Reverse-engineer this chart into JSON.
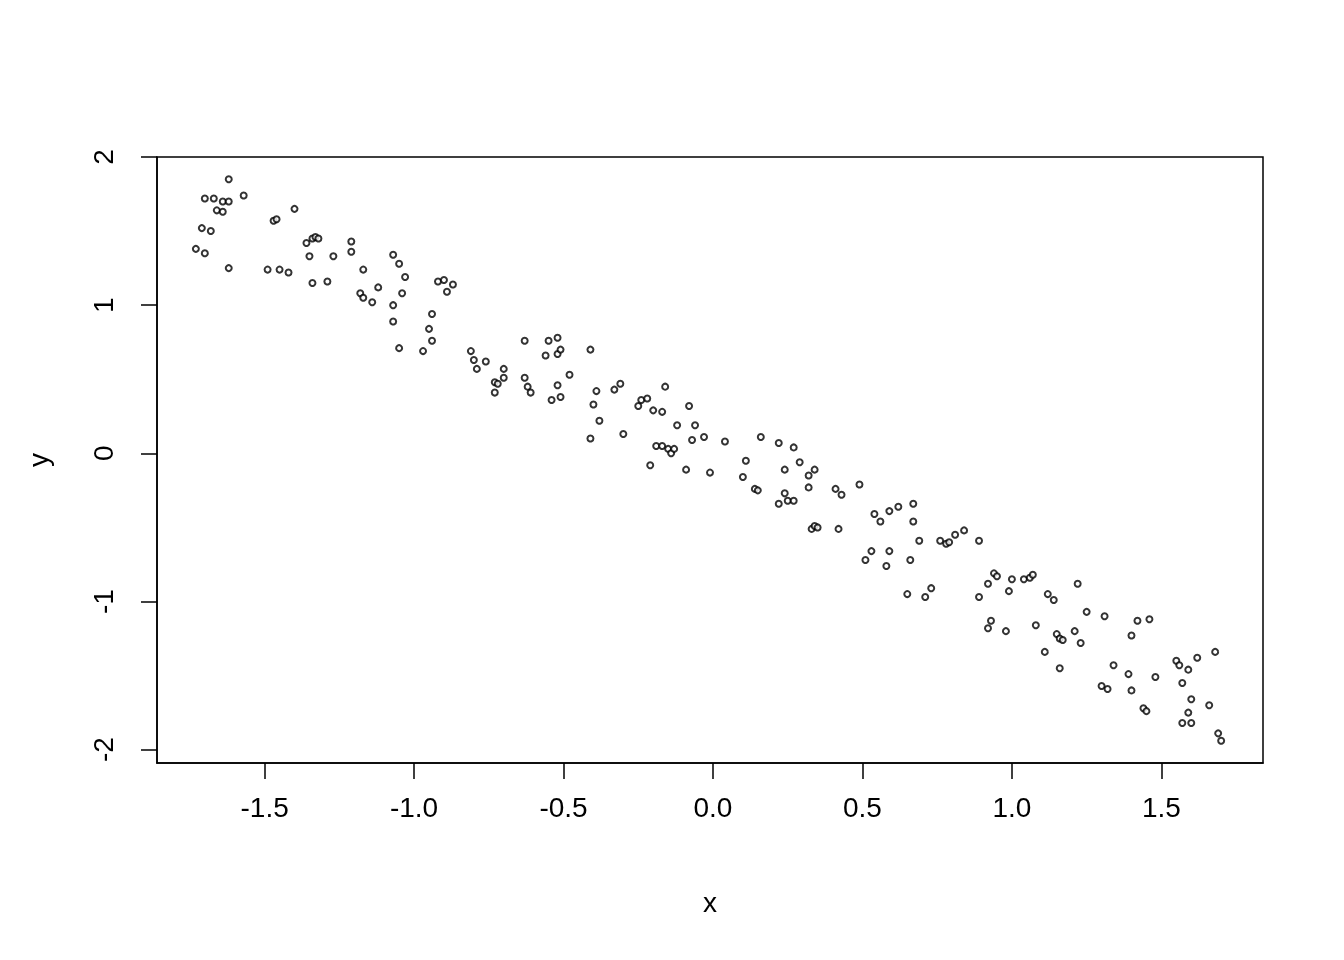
{
  "chart_data": {
    "type": "scatter",
    "xlabel": "x",
    "ylabel": "y",
    "marker": "circle",
    "grid": false,
    "color": "#000000",
    "xlim": [
      -1.86,
      1.84
    ],
    "ylim": [
      -2.09,
      2.0
    ],
    "xticks": [
      {
        "value": -1.5,
        "label": "-1.5"
      },
      {
        "value": -1.0,
        "label": "-1.0"
      },
      {
        "value": -0.5,
        "label": "-0.5"
      },
      {
        "value": 0,
        "label": "0.0"
      },
      {
        "value": 0.5,
        "label": "0.5"
      },
      {
        "value": 1.0,
        "label": "1.0"
      },
      {
        "value": 1.5,
        "label": "1.5"
      }
    ],
    "yticks": [
      -2,
      -1,
      0,
      1,
      2
    ],
    "x": [
      -1.73,
      -1.71,
      -1.7,
      -1.7,
      -1.68,
      -1.67,
      -1.66,
      -1.64,
      -1.64,
      -1.62,
      -1.62,
      -1.62,
      -1.57,
      -1.49,
      -1.47,
      -1.46,
      -1.45,
      -1.42,
      -1.4,
      -1.36,
      -1.35,
      -1.34,
      -1.34,
      -1.33,
      -1.32,
      -1.29,
      -1.27,
      -1.21,
      -1.21,
      -1.17,
      -1.18,
      -1.17,
      -1.14,
      -1.12,
      -1.07,
      -1.07,
      -1.07,
      -1.05,
      -1.05,
      -1.04,
      -1.03,
      -0.97,
      -0.95,
      -0.94,
      -0.94,
      -0.92,
      -0.9,
      -0.89,
      -0.87,
      -0.81,
      -0.8,
      -0.79,
      -0.76,
      -0.73,
      -0.73,
      -0.72,
      -0.7,
      -0.7,
      -0.63,
      -0.63,
      -0.62,
      -0.61,
      -0.56,
      -0.55,
      -0.54,
      -0.52,
      -0.52,
      -0.52,
      -0.51,
      -0.51,
      -0.48,
      -0.41,
      -0.41,
      -0.4,
      -0.39,
      -0.38,
      -0.33,
      -0.31,
      -0.3,
      -0.25,
      -0.24,
      -0.22,
      -0.21,
      -0.2,
      -0.19,
      -0.17,
      -0.17,
      -0.16,
      -0.15,
      -0.14,
      -0.13,
      -0.12,
      -0.09,
      -0.08,
      -0.07,
      -0.06,
      -0.03,
      -0.01,
      0.04,
      0.1,
      0.11,
      0.14,
      0.15,
      0.16,
      0.22,
      0.22,
      0.24,
      0.24,
      0.25,
      0.27,
      0.27,
      0.29,
      0.32,
      0.32,
      0.33,
      0.34,
      0.34,
      0.35,
      0.41,
      0.42,
      0.43,
      0.49,
      0.51,
      0.53,
      0.54,
      0.56,
      0.58,
      0.59,
      0.59,
      0.62,
      0.65,
      0.66,
      0.67,
      0.67,
      0.69,
      0.71,
      0.73,
      0.76,
      0.78,
      0.79,
      0.81,
      0.84,
      0.89,
      0.89,
      0.92,
      0.92,
      0.93,
      0.94,
      0.95,
      0.98,
      0.99,
      1.0,
      1.04,
      1.06,
      1.07,
      1.08,
      1.11,
      1.12,
      1.14,
      1.15,
      1.16,
      1.16,
      1.17,
      1.21,
      1.22,
      1.23,
      1.25,
      1.3,
      1.31,
      1.32,
      1.34,
      1.39,
      1.4,
      1.4,
      1.42,
      1.44,
      1.45,
      1.46,
      1.48,
      1.55,
      1.56,
      1.57,
      1.57,
      1.59,
      1.59,
      1.6,
      1.6,
      1.62,
      1.66,
      1.68,
      1.69,
      1.7
    ],
    "values": [
      1.38,
      1.52,
      1.35,
      1.72,
      1.5,
      1.72,
      1.64,
      1.63,
      1.7,
      1.85,
      1.7,
      1.25,
      1.74,
      1.24,
      1.57,
      1.58,
      1.24,
      1.22,
      1.65,
      1.42,
      1.33,
      1.15,
      1.45,
      1.46,
      1.45,
      1.16,
      1.33,
      1.43,
      1.36,
      1.24,
      1.08,
      1.05,
      1.02,
      1.12,
      1.34,
      0.89,
      1.0,
      1.28,
      0.71,
      1.08,
      1.19,
      0.69,
      0.84,
      0.94,
      0.76,
      1.16,
      1.17,
      1.09,
      1.14,
      0.69,
      0.63,
      0.57,
      0.62,
      0.48,
      0.41,
      0.47,
      0.51,
      0.57,
      0.76,
      0.51,
      0.45,
      0.41,
      0.66,
      0.76,
      0.36,
      0.46,
      0.78,
      0.67,
      0.38,
      0.7,
      0.53,
      0.7,
      0.1,
      0.33,
      0.42,
      0.22,
      0.43,
      0.47,
      0.13,
      0.32,
      0.36,
      0.37,
      -0.08,
      0.29,
      0.05,
      0.28,
      0.05,
      0.45,
      0.03,
      0.0,
      0.03,
      0.19,
      -0.11,
      0.32,
      0.09,
      0.19,
      0.11,
      -0.13,
      0.08,
      -0.16,
      -0.05,
      -0.24,
      -0.25,
      0.11,
      0.07,
      -0.34,
      -0.27,
      -0.11,
      -0.32,
      0.04,
      -0.32,
      -0.06,
      -0.23,
      -0.15,
      -0.51,
      -0.49,
      -0.11,
      -0.5,
      -0.24,
      -0.51,
      -0.28,
      -0.21,
      -0.72,
      -0.66,
      -0.41,
      -0.46,
      -0.76,
      -0.66,
      -0.39,
      -0.36,
      -0.95,
      -0.72,
      -0.34,
      -0.46,
      -0.59,
      -0.97,
      -0.91,
      -0.59,
      -0.61,
      -0.6,
      -0.55,
      -0.52,
      -0.59,
      -0.97,
      -0.88,
      -1.18,
      -1.13,
      -0.81,
      -0.83,
      -1.2,
      -0.93,
      -0.85,
      -0.85,
      -0.84,
      -0.82,
      -1.16,
      -1.34,
      -0.95,
      -0.99,
      -1.22,
      -1.25,
      -1.45,
      -1.26,
      -1.2,
      -0.88,
      -1.28,
      -1.07,
      -1.57,
      -1.1,
      -1.59,
      -1.43,
      -1.49,
      -1.6,
      -1.23,
      -1.13,
      -1.72,
      -1.74,
      -1.12,
      -1.51,
      -1.4,
      -1.43,
      -1.55,
      -1.82,
      -1.75,
      -1.46,
      -1.82,
      -1.66,
      -1.38,
      -1.7,
      -1.34,
      -1.89,
      -1.94
    ]
  }
}
